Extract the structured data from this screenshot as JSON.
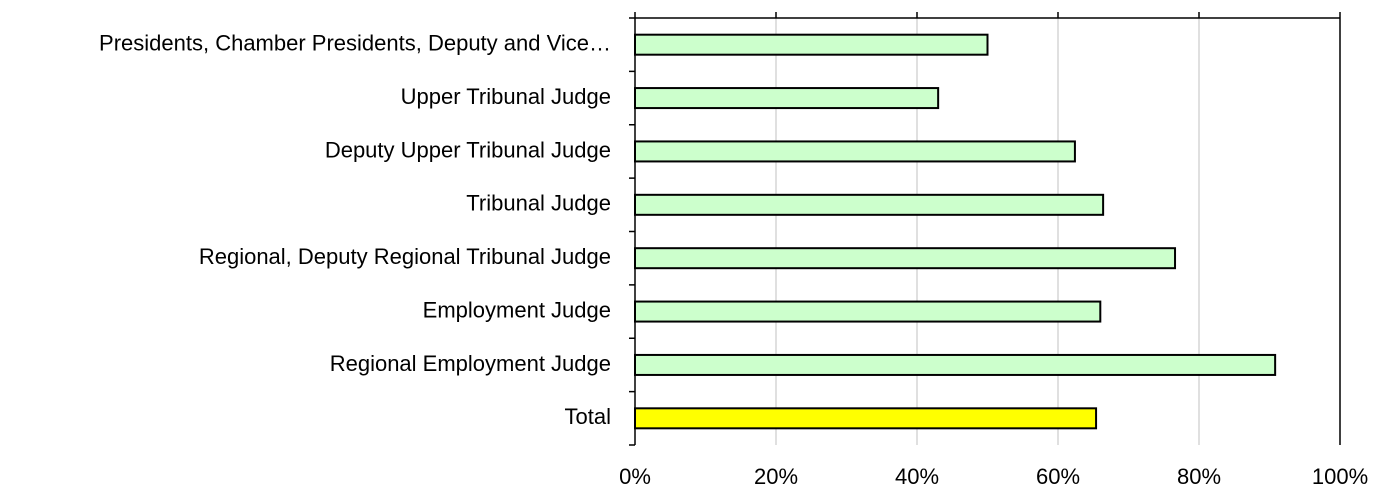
{
  "chart_data": {
    "type": "hbar",
    "categories": [
      "Presidents, Chamber Presidents, Deputy and Vice…",
      "Upper Tribunal Judge",
      "Deputy Upper Tribunal Judge",
      "Tribunal Judge",
      "Regional, Deputy Regional Tribunal Judge",
      "Employment Judge",
      "Regional Employment Judge",
      "Total"
    ],
    "values": [
      50,
      43,
      62.4,
      66.4,
      76.6,
      66,
      90.8,
      65.4
    ],
    "colors": [
      "#ccffcc",
      "#ccffcc",
      "#ccffcc",
      "#ccffcc",
      "#ccffcc",
      "#ccffcc",
      "#ccffcc",
      "#ffff00"
    ],
    "xlim": [
      0,
      100
    ],
    "xticks": [
      {
        "value": 0,
        "label": "0%"
      },
      {
        "value": 20,
        "label": "20%"
      },
      {
        "value": 40,
        "label": "40%"
      },
      {
        "value": 60,
        "label": "60%"
      },
      {
        "value": 80,
        "label": "80%"
      },
      {
        "value": 100,
        "label": "100%"
      }
    ],
    "grid": true
  }
}
